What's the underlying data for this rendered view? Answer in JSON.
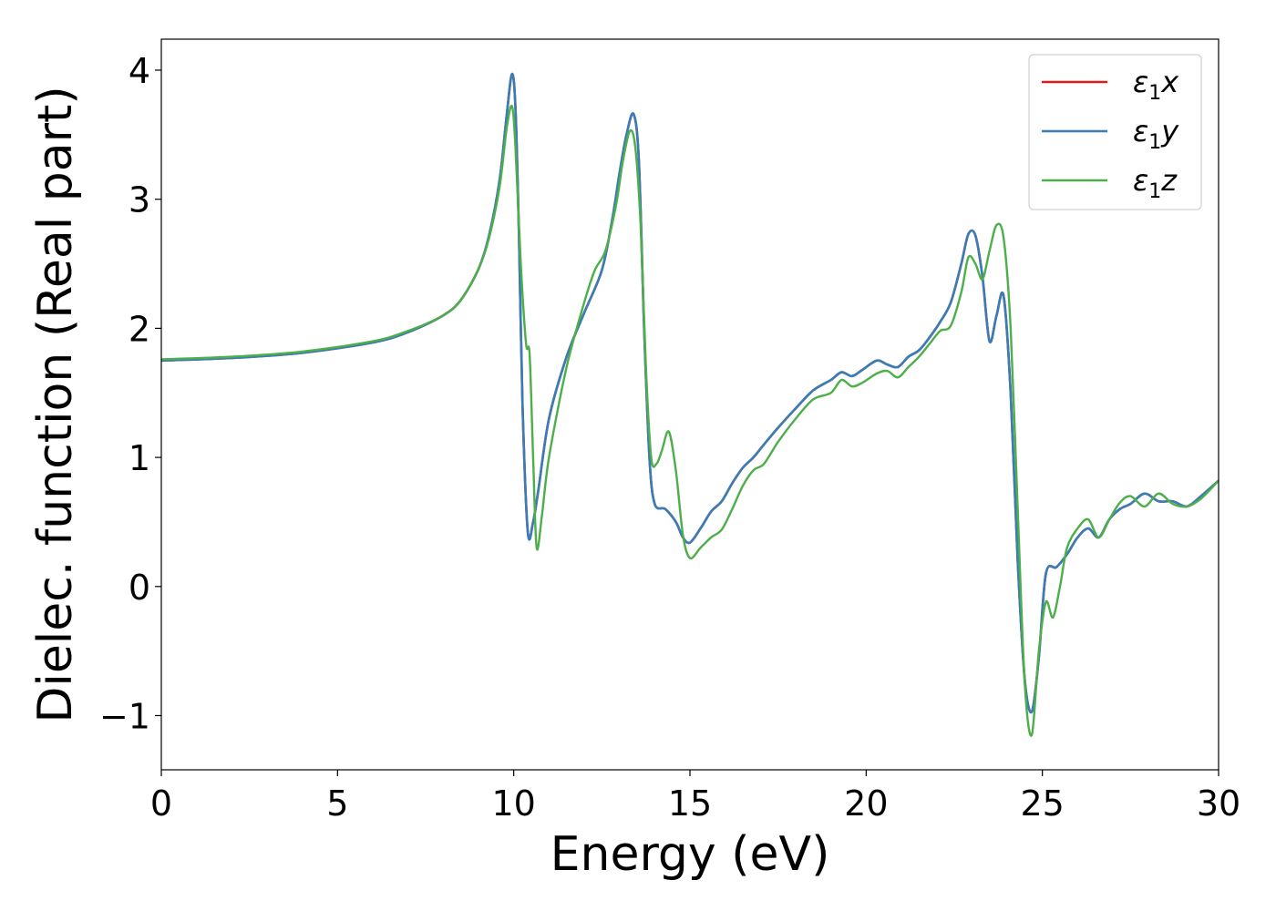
{
  "chart_data": {
    "type": "line",
    "title": "",
    "xlabel": "Energy (eV)",
    "ylabel": "Dielec. function (Real part)",
    "xlim": [
      0,
      30
    ],
    "ylim": [
      -1.42,
      4.24
    ],
    "xticks": [
      0,
      5,
      10,
      15,
      20,
      25,
      30
    ],
    "xtick_labels": [
      "0",
      "5",
      "10",
      "15",
      "20",
      "25",
      "30"
    ],
    "yticks": [
      -1,
      0,
      1,
      2,
      3,
      4
    ],
    "ytick_labels": [
      "−1",
      "0",
      "1",
      "2",
      "3",
      "4"
    ],
    "grid": false,
    "legend_position": "top-right",
    "series": [
      {
        "name": "ε₁x",
        "legend_base": "ε",
        "legend_sub": "1",
        "legend_var": "x",
        "color": "#e41a1c",
        "x": [
          0,
          2,
          4,
          6,
          7,
          8,
          8.5,
          9,
          9.3,
          9.6,
          9.8,
          9.95,
          10.05,
          10.15,
          10.25,
          10.4,
          10.55,
          10.7,
          11.0,
          11.5,
          12.0,
          12.5,
          12.8,
          13.0,
          13.2,
          13.4,
          13.55,
          13.7,
          13.85,
          14.0,
          14.3,
          14.6,
          14.8,
          15.0,
          15.3,
          15.6,
          15.9,
          16.2,
          16.5,
          16.8,
          17.1,
          17.5,
          18.0,
          18.5,
          19.0,
          19.3,
          19.6,
          19.9,
          20.3,
          20.6,
          20.9,
          21.2,
          21.5,
          21.8,
          22.1,
          22.4,
          22.7,
          22.9,
          23.1,
          23.3,
          23.5,
          23.7,
          23.9,
          24.1,
          24.3,
          24.5,
          24.7,
          24.9,
          25.1,
          25.4,
          25.7,
          26.0,
          26.3,
          26.6,
          26.9,
          27.2,
          27.5,
          27.9,
          28.3,
          28.7,
          29.1,
          29.5,
          30.0
        ],
        "y": [
          1.75,
          1.77,
          1.81,
          1.89,
          1.97,
          2.1,
          2.22,
          2.46,
          2.72,
          3.15,
          3.65,
          3.97,
          3.7,
          2.7,
          1.4,
          0.42,
          0.5,
          0.75,
          1.3,
          1.78,
          2.12,
          2.45,
          2.85,
          3.2,
          3.5,
          3.66,
          3.3,
          2.0,
          1.0,
          0.64,
          0.6,
          0.5,
          0.38,
          0.34,
          0.45,
          0.58,
          0.66,
          0.8,
          0.92,
          1.0,
          1.1,
          1.23,
          1.38,
          1.52,
          1.6,
          1.66,
          1.63,
          1.68,
          1.75,
          1.72,
          1.7,
          1.78,
          1.83,
          1.93,
          2.05,
          2.2,
          2.5,
          2.73,
          2.72,
          2.4,
          1.9,
          2.1,
          2.25,
          1.5,
          0.2,
          -0.72,
          -0.97,
          -0.55,
          0.1,
          0.15,
          0.25,
          0.38,
          0.45,
          0.38,
          0.52,
          0.6,
          0.64,
          0.72,
          0.66,
          0.66,
          0.62,
          0.7,
          0.82
        ]
      },
      {
        "name": "ε₁y",
        "legend_base": "ε",
        "legend_sub": "1",
        "legend_var": "y",
        "color": "#377eb8",
        "x": [
          0,
          2,
          4,
          6,
          7,
          8,
          8.5,
          9,
          9.3,
          9.6,
          9.8,
          9.95,
          10.05,
          10.15,
          10.25,
          10.4,
          10.55,
          10.7,
          11.0,
          11.5,
          12.0,
          12.5,
          12.8,
          13.0,
          13.2,
          13.4,
          13.55,
          13.7,
          13.85,
          14.0,
          14.3,
          14.6,
          14.8,
          15.0,
          15.3,
          15.6,
          15.9,
          16.2,
          16.5,
          16.8,
          17.1,
          17.5,
          18.0,
          18.5,
          19.0,
          19.3,
          19.6,
          19.9,
          20.3,
          20.6,
          20.9,
          21.2,
          21.5,
          21.8,
          22.1,
          22.4,
          22.7,
          22.9,
          23.1,
          23.3,
          23.5,
          23.7,
          23.9,
          24.1,
          24.3,
          24.5,
          24.7,
          24.9,
          25.1,
          25.4,
          25.7,
          26.0,
          26.3,
          26.6,
          26.9,
          27.2,
          27.5,
          27.9,
          28.3,
          28.7,
          29.1,
          29.5,
          30.0
        ],
        "y": [
          1.75,
          1.77,
          1.81,
          1.89,
          1.97,
          2.1,
          2.22,
          2.46,
          2.72,
          3.15,
          3.65,
          3.97,
          3.7,
          2.7,
          1.4,
          0.42,
          0.5,
          0.75,
          1.3,
          1.78,
          2.12,
          2.45,
          2.85,
          3.2,
          3.5,
          3.66,
          3.3,
          2.0,
          1.0,
          0.64,
          0.6,
          0.5,
          0.38,
          0.34,
          0.45,
          0.58,
          0.66,
          0.8,
          0.92,
          1.0,
          1.1,
          1.23,
          1.38,
          1.52,
          1.6,
          1.66,
          1.63,
          1.68,
          1.75,
          1.72,
          1.7,
          1.78,
          1.83,
          1.93,
          2.05,
          2.2,
          2.5,
          2.73,
          2.72,
          2.4,
          1.9,
          2.1,
          2.25,
          1.5,
          0.2,
          -0.72,
          -0.97,
          -0.55,
          0.1,
          0.15,
          0.25,
          0.38,
          0.45,
          0.38,
          0.52,
          0.6,
          0.64,
          0.72,
          0.66,
          0.66,
          0.62,
          0.7,
          0.82
        ]
      },
      {
        "name": "ε₁z",
        "legend_base": "ε",
        "legend_sub": "1",
        "legend_var": "z",
        "color": "#4daf4a",
        "x": [
          0,
          2,
          4,
          6,
          7,
          8,
          8.5,
          9,
          9.3,
          9.6,
          9.8,
          9.95,
          10.05,
          10.2,
          10.35,
          10.45,
          10.55,
          10.65,
          10.8,
          11.0,
          11.5,
          12.0,
          12.3,
          12.6,
          12.9,
          13.1,
          13.3,
          13.45,
          13.6,
          13.75,
          13.9,
          14.05,
          14.2,
          14.4,
          14.6,
          14.8,
          15.0,
          15.3,
          15.6,
          15.9,
          16.2,
          16.5,
          16.8,
          17.1,
          17.5,
          18.0,
          18.5,
          19.0,
          19.3,
          19.6,
          19.9,
          20.3,
          20.6,
          20.9,
          21.2,
          21.5,
          21.8,
          22.1,
          22.4,
          22.7,
          22.9,
          23.1,
          23.3,
          23.5,
          23.7,
          23.9,
          24.1,
          24.3,
          24.5,
          24.7,
          24.9,
          25.1,
          25.3,
          25.5,
          25.7,
          26.0,
          26.3,
          26.6,
          26.9,
          27.2,
          27.5,
          27.9,
          28.3,
          28.7,
          29.1,
          29.5,
          30.0
        ],
        "y": [
          1.76,
          1.78,
          1.82,
          1.9,
          1.98,
          2.1,
          2.22,
          2.46,
          2.7,
          3.1,
          3.55,
          3.72,
          3.4,
          2.5,
          1.88,
          1.8,
          1.0,
          0.3,
          0.55,
          1.0,
          1.7,
          2.2,
          2.45,
          2.6,
          2.95,
          3.3,
          3.53,
          3.4,
          2.8,
          1.7,
          1.0,
          0.95,
          1.05,
          1.2,
          0.9,
          0.4,
          0.22,
          0.3,
          0.38,
          0.44,
          0.6,
          0.78,
          0.9,
          0.95,
          1.12,
          1.3,
          1.45,
          1.5,
          1.6,
          1.55,
          1.58,
          1.65,
          1.67,
          1.62,
          1.7,
          1.78,
          1.88,
          1.98,
          2.02,
          2.28,
          2.55,
          2.5,
          2.38,
          2.6,
          2.8,
          2.7,
          2.0,
          0.6,
          -0.75,
          -1.15,
          -0.5,
          -0.12,
          -0.24,
          0.0,
          0.3,
          0.45,
          0.52,
          0.38,
          0.52,
          0.65,
          0.7,
          0.62,
          0.72,
          0.64,
          0.62,
          0.68,
          0.82
        ]
      }
    ]
  }
}
